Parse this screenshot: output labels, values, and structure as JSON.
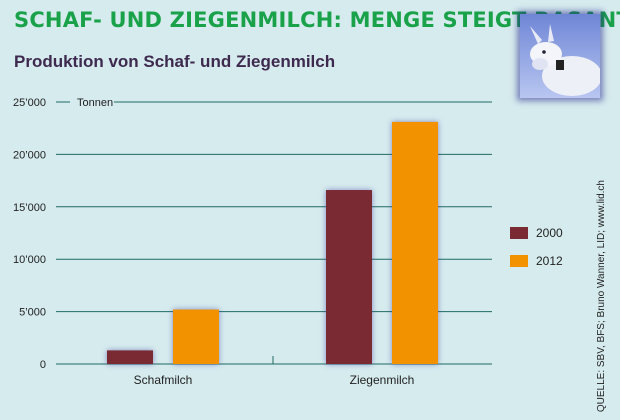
{
  "headline": "SCHAF- UND ZIEGENMILCH: MENGE STEIGT RASANT",
  "photo": {
    "icon": "goat-photo-icon"
  },
  "source": "QUELLE: SBV, BFS; Bruno Wanner, LID; www.lid.ch",
  "colors": {
    "series2000": "#7a2a33",
    "series2012": "#f39200",
    "grid": "#1f6b62",
    "title": "#1aa24a",
    "subtitle": "#3d2a4e"
  },
  "chart_data": {
    "type": "bar",
    "title": "Produktion von Schaf- und Ziegenmilch",
    "ylabel": "Tonnen",
    "xlabel": "",
    "categories": [
      "Schafmilch",
      "Ziegenmilch"
    ],
    "series": [
      {
        "name": "2000",
        "values": [
          1300,
          16600
        ]
      },
      {
        "name": "2012",
        "values": [
          5200,
          23100
        ]
      }
    ],
    "ylim": [
      0,
      25000
    ],
    "yticks": [
      {
        "value": 0,
        "label": "0"
      },
      {
        "value": 5000,
        "label": "5’000"
      },
      {
        "value": 10000,
        "label": "10’000"
      },
      {
        "value": 15000,
        "label": "15’000"
      },
      {
        "value": 20000,
        "label": "20’000"
      },
      {
        "value": 25000,
        "label": "25’000"
      }
    ],
    "grid": true,
    "legend_position": "right"
  }
}
